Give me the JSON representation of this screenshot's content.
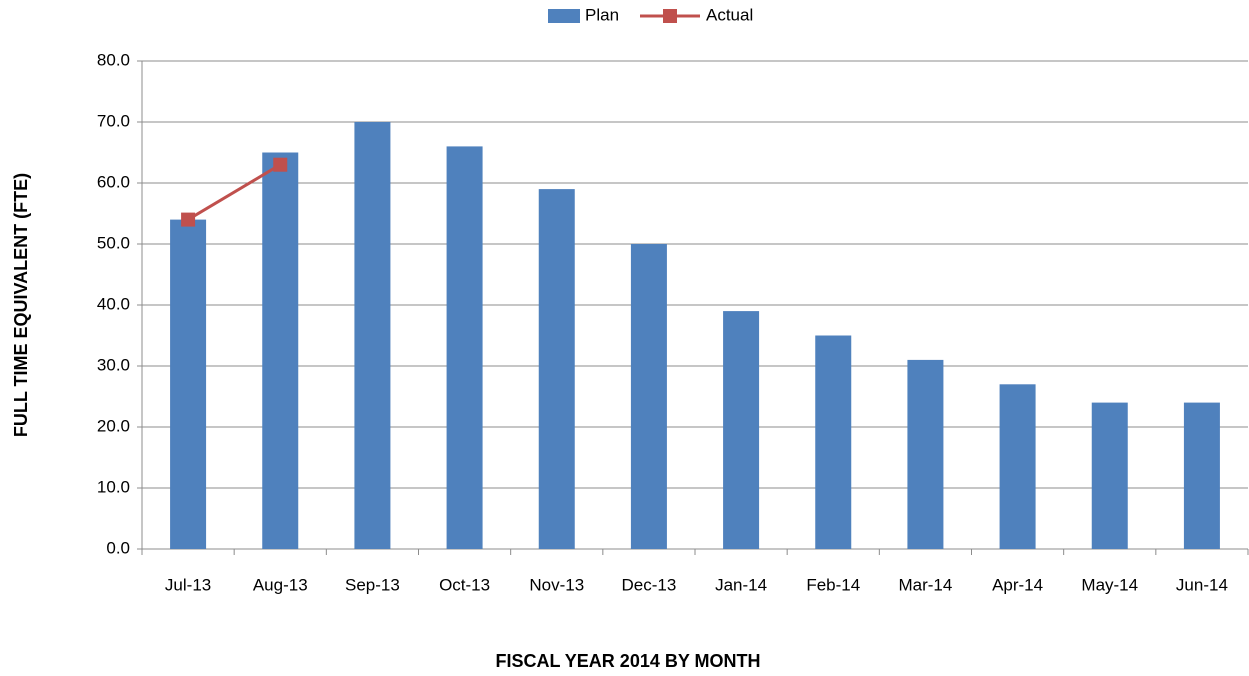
{
  "chart_data": {
    "type": "bar",
    "y_label": "FULL TIME EQUIVALENT (FTE)",
    "x_label": "FISCAL YEAR 2014 BY MONTH",
    "categories": [
      "Jul-13",
      "Aug-13",
      "Sep-13",
      "Oct-13",
      "Nov-13",
      "Dec-13",
      "Jan-14",
      "Feb-14",
      "Mar-14",
      "Apr-14",
      "May-14",
      "Jun-14"
    ],
    "series": [
      {
        "name": "Plan",
        "type": "bar",
        "color": "#4f81bd",
        "values": [
          54,
          65,
          70,
          66,
          59,
          50,
          39,
          35,
          31,
          27,
          24,
          24
        ]
      },
      {
        "name": "Actual",
        "type": "line",
        "color": "#c0504d",
        "values": [
          54,
          63,
          null,
          null,
          null,
          null,
          null,
          null,
          null,
          null,
          null,
          null
        ]
      }
    ],
    "ylim": [
      0,
      80
    ],
    "yticks": [
      {
        "value": 0,
        "label": "0.0"
      },
      {
        "value": 10,
        "label": "10.0"
      },
      {
        "value": 20,
        "label": "20.0"
      },
      {
        "value": 30,
        "label": "30.0"
      },
      {
        "value": 40,
        "label": "40.0"
      },
      {
        "value": 50,
        "label": "50.0"
      },
      {
        "value": 60,
        "label": "60.0"
      },
      {
        "value": 70,
        "label": "70.0"
      },
      {
        "value": 80,
        "label": "80.0"
      }
    ],
    "grid": true,
    "legend": "top"
  }
}
